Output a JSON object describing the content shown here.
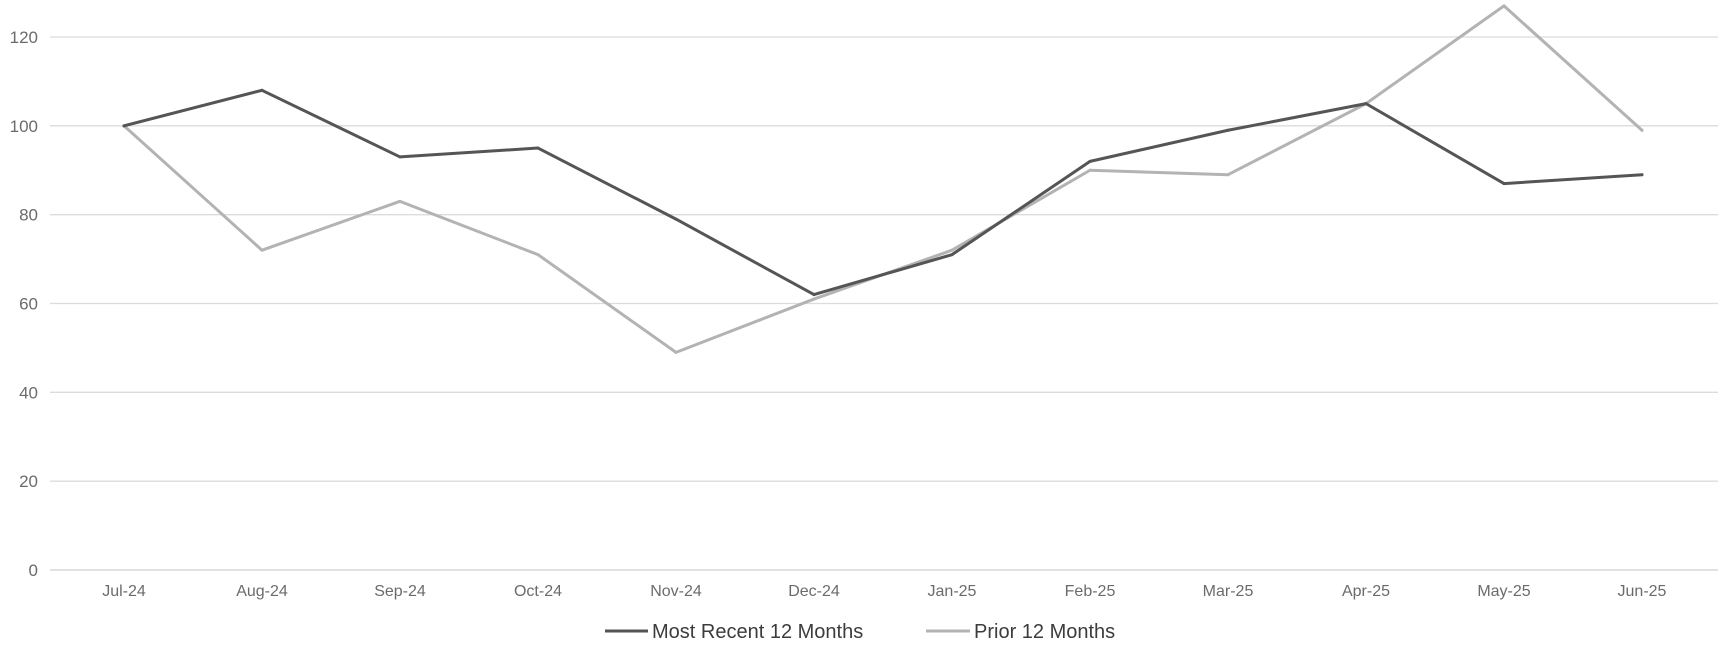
{
  "chart_data": {
    "type": "line",
    "title": "",
    "xlabel": "",
    "ylabel": "",
    "ylim": [
      0,
      120
    ],
    "yticks": [
      0,
      20,
      40,
      60,
      80,
      100,
      120
    ],
    "grid": "horizontal",
    "legend_position": "bottom-center",
    "categories": [
      "Jul-24",
      "Aug-24",
      "Sep-24",
      "Oct-24",
      "Nov-24",
      "Dec-24",
      "Jan-25",
      "Feb-25",
      "Mar-25",
      "Apr-25",
      "May-25",
      "Jun-25"
    ],
    "series": [
      {
        "name": "Most Recent 12 Months",
        "color": "#555555",
        "values": [
          100,
          108,
          93,
          95,
          79,
          62,
          71,
          92,
          99,
          105,
          87,
          89
        ]
      },
      {
        "name": "Prior 12 Months",
        "color": "#b3b3b3",
        "values": [
          100,
          72,
          83,
          71,
          49,
          61,
          72,
          90,
          89,
          105,
          127,
          99
        ]
      }
    ]
  }
}
